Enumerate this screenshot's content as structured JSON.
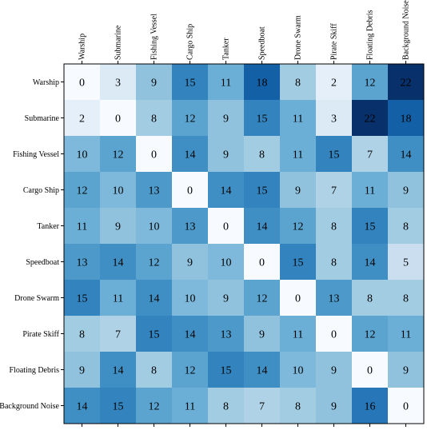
{
  "chart_data": {
    "type": "heatmap",
    "colormap": "Blues",
    "value_range": [
      0,
      22
    ],
    "x_tick_position": "top",
    "x_tick_rotation": "vertical",
    "grid": false,
    "rows": [
      "Warship",
      "Submarine",
      "Fishing Vessel",
      "Cargo Ship",
      "Tanker",
      "Speedboat",
      "Drone Swarm",
      "Pirate Skiff",
      "Floating Debris",
      "Background Noise"
    ],
    "columns": [
      "Warship",
      "Submarine",
      "Fishing Vessel",
      "Cargo Ship",
      "Tanker",
      "Speedboat",
      "Drone Swarm",
      "Pirate Skiff",
      "Floating Debris",
      "Background Noise"
    ],
    "values": [
      [
        0,
        3,
        9,
        15,
        11,
        18,
        8,
        2,
        12,
        22
      ],
      [
        2,
        0,
        8,
        12,
        9,
        15,
        11,
        3,
        22,
        18
      ],
      [
        10,
        12,
        0,
        14,
        9,
        8,
        11,
        15,
        7,
        14
      ],
      [
        12,
        10,
        13,
        0,
        14,
        15,
        9,
        7,
        11,
        9
      ],
      [
        11,
        9,
        10,
        13,
        0,
        14,
        12,
        8,
        15,
        8
      ],
      [
        13,
        14,
        12,
        9,
        10,
        0,
        15,
        8,
        14,
        5
      ],
      [
        15,
        11,
        14,
        10,
        9,
        12,
        0,
        13,
        8,
        8
      ],
      [
        8,
        7,
        15,
        14,
        13,
        9,
        11,
        0,
        12,
        11
      ],
      [
        9,
        14,
        8,
        12,
        15,
        14,
        10,
        9,
        0,
        9
      ],
      [
        14,
        15,
        12,
        11,
        8,
        7,
        8,
        9,
        16,
        0
      ]
    ]
  }
}
